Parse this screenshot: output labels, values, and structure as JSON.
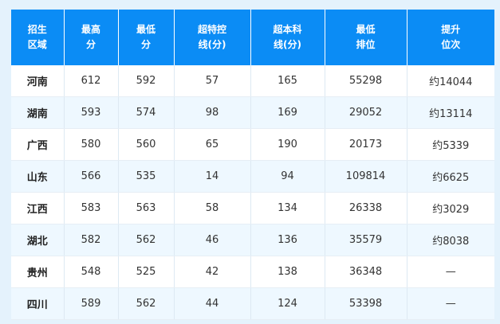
{
  "table": {
    "header": [
      "招生\n区域",
      "最高\n分",
      "最低\n分",
      "超特控\n线(分)",
      "超本科\n线(分)",
      "最低\n排位",
      "提升\n位次"
    ],
    "rows": [
      [
        "河南",
        "612",
        "592",
        "57",
        "165",
        "55298",
        "约14044"
      ],
      [
        "湖南",
        "593",
        "574",
        "98",
        "169",
        "29052",
        "约13114"
      ],
      [
        "广西",
        "580",
        "560",
        "65",
        "190",
        "20173",
        "约5339"
      ],
      [
        "山东",
        "566",
        "535",
        "14",
        "94",
        "109814",
        "约6625"
      ],
      [
        "江西",
        "583",
        "563",
        "58",
        "134",
        "26338",
        "约3029"
      ],
      [
        "湖北",
        "582",
        "562",
        "46",
        "136",
        "35579",
        "约8038"
      ],
      [
        "贵州",
        "548",
        "525",
        "42",
        "138",
        "36348",
        "—"
      ],
      [
        "四川",
        "589",
        "562",
        "44",
        "124",
        "53398",
        "—"
      ]
    ]
  }
}
